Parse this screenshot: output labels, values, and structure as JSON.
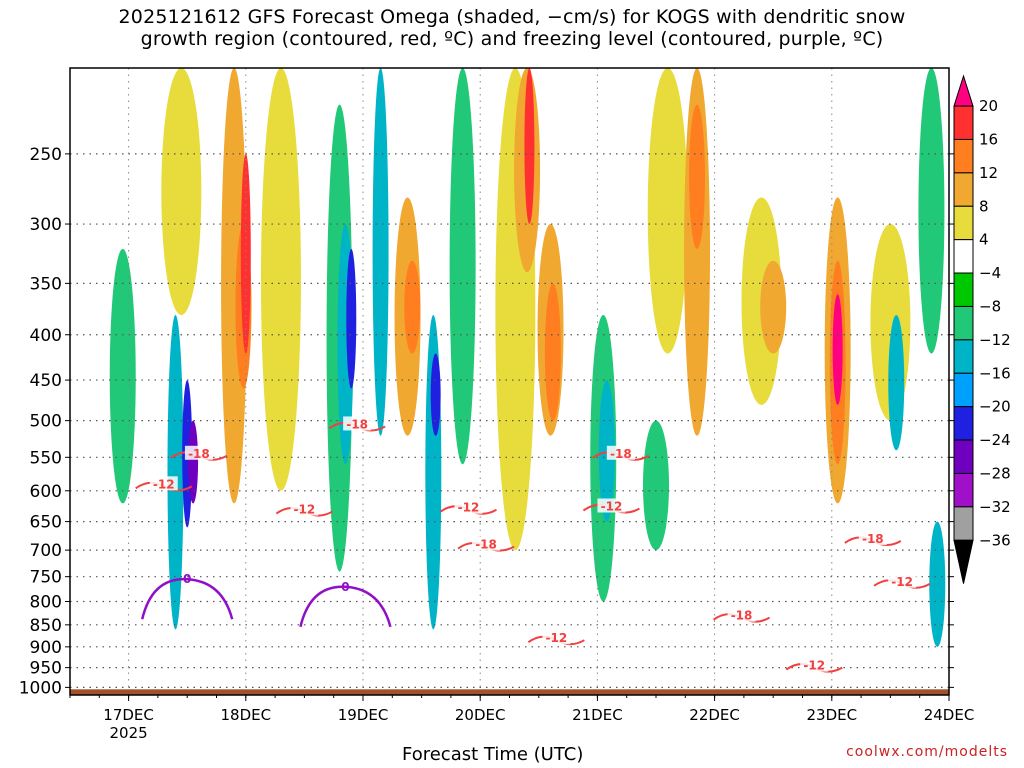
{
  "title": {
    "line1": "2025121612 GFS Forecast Omega (shaded, −cm/s) for KOGS with dendritic snow",
    "line2": "growth region (contoured, red, ºC) and freezing level (contoured, purple, ºC)"
  },
  "credit": "coolwx.com/modelts",
  "chart_data": {
    "type": "heatmap",
    "title": "2025121612 GFS Forecast Omega (shaded, −cm/s) for KOGS with dendritic snow growth region (contoured, red, ºC) and freezing level (contoured, purple, ºC)",
    "xlabel": "Forecast Time (UTC)",
    "ylabel": "",
    "x_range_days": [
      16.5,
      24.0
    ],
    "x_ticks": [
      {
        "day": 17,
        "label": "17DEC",
        "sublabel": "2025"
      },
      {
        "day": 18,
        "label": "18DEC",
        "sublabel": ""
      },
      {
        "day": 19,
        "label": "19DEC",
        "sublabel": ""
      },
      {
        "day": 20,
        "label": "20DEC",
        "sublabel": ""
      },
      {
        "day": 21,
        "label": "21DEC",
        "sublabel": ""
      },
      {
        "day": 22,
        "label": "22DEC",
        "sublabel": ""
      },
      {
        "day": 23,
        "label": "23DEC",
        "sublabel": ""
      },
      {
        "day": 24,
        "label": "24DEC",
        "sublabel": ""
      }
    ],
    "y_range_hpa": [
      200,
      1020
    ],
    "y_ticks": [
      250,
      300,
      350,
      400,
      450,
      500,
      550,
      600,
      650,
      700,
      750,
      800,
      850,
      900,
      950,
      1000
    ],
    "colorbar": {
      "labels": [
        "20",
        "16",
        "12",
        "8",
        "4",
        "−4",
        "−8",
        "−12",
        "−16",
        "−20",
        "−24",
        "−28",
        "−32",
        "−36"
      ],
      "colors": [
        "#ff0080",
        "#ff3030",
        "#ff7f20",
        "#f0a830",
        "#e8dc3c",
        "#ffffff",
        "#00c800",
        "#20c878",
        "#00b4c8",
        "#00a0ff",
        "#2020e0",
        "#7000c0",
        "#a010c8",
        "#a0a0a0",
        "#000000"
      ]
    },
    "omega_cells": [
      {
        "d": 16.95,
        "p0": 320,
        "p1": 620,
        "v": -8
      },
      {
        "d": 17.4,
        "p0": 380,
        "p1": 860,
        "v": -12
      },
      {
        "d": 17.5,
        "p0": 450,
        "p1": 660,
        "v": -20
      },
      {
        "d": 17.55,
        "p0": 500,
        "p1": 620,
        "v": -24
      },
      {
        "d": 17.45,
        "p0": 200,
        "p1": 380,
        "v": 4
      },
      {
        "d": 17.9,
        "p0": 200,
        "p1": 620,
        "v": 8
      },
      {
        "d": 17.98,
        "p0": 300,
        "p1": 460,
        "v": 12
      },
      {
        "d": 18.0,
        "p0": 250,
        "p1": 420,
        "v": 16
      },
      {
        "d": 18.3,
        "p0": 200,
        "p1": 600,
        "v": 4
      },
      {
        "d": 18.8,
        "p0": 220,
        "p1": 740,
        "v": -8
      },
      {
        "d": 18.85,
        "p0": 300,
        "p1": 560,
        "v": -12
      },
      {
        "d": 18.9,
        "p0": 320,
        "p1": 460,
        "v": -20
      },
      {
        "d": 19.15,
        "p0": 200,
        "p1": 520,
        "v": -12
      },
      {
        "d": 19.38,
        "p0": 280,
        "p1": 520,
        "v": 8
      },
      {
        "d": 19.42,
        "p0": 330,
        "p1": 420,
        "v": 12
      },
      {
        "d": 19.6,
        "p0": 380,
        "p1": 860,
        "v": -12
      },
      {
        "d": 19.62,
        "p0": 420,
        "p1": 520,
        "v": -20
      },
      {
        "d": 19.85,
        "p0": 200,
        "p1": 560,
        "v": -8
      },
      {
        "d": 20.3,
        "p0": 200,
        "p1": 700,
        "v": 4
      },
      {
        "d": 20.4,
        "p0": 200,
        "p1": 340,
        "v": 8
      },
      {
        "d": 20.42,
        "p0": 200,
        "p1": 300,
        "v": 16
      },
      {
        "d": 20.6,
        "p0": 300,
        "p1": 520,
        "v": 8
      },
      {
        "d": 20.62,
        "p0": 350,
        "p1": 500,
        "v": 12
      },
      {
        "d": 21.05,
        "p0": 380,
        "p1": 800,
        "v": -8
      },
      {
        "d": 21.08,
        "p0": 450,
        "p1": 650,
        "v": -12
      },
      {
        "d": 21.5,
        "p0": 500,
        "p1": 700,
        "v": -8
      },
      {
        "d": 21.6,
        "p0": 200,
        "p1": 420,
        "v": 4
      },
      {
        "d": 21.85,
        "p0": 200,
        "p1": 520,
        "v": 8
      },
      {
        "d": 21.85,
        "p0": 220,
        "p1": 320,
        "v": 12
      },
      {
        "d": 22.4,
        "p0": 280,
        "p1": 480,
        "v": 4
      },
      {
        "d": 22.5,
        "p0": 330,
        "p1": 420,
        "v": 8
      },
      {
        "d": 23.05,
        "p0": 280,
        "p1": 620,
        "v": 8
      },
      {
        "d": 23.05,
        "p0": 330,
        "p1": 560,
        "v": 12
      },
      {
        "d": 23.05,
        "p0": 360,
        "p1": 480,
        "v": 20
      },
      {
        "d": 23.5,
        "p0": 300,
        "p1": 500,
        "v": 4
      },
      {
        "d": 23.55,
        "p0": 380,
        "p1": 540,
        "v": -12
      },
      {
        "d": 23.85,
        "p0": 200,
        "p1": 420,
        "v": -8
      },
      {
        "d": 23.9,
        "p0": 650,
        "p1": 900,
        "v": -12
      }
    ],
    "dgz_contours": [
      {
        "label": "-12",
        "d": 17.3,
        "p": 590
      },
      {
        "label": "-18",
        "d": 17.6,
        "p": 545
      },
      {
        "label": "-18",
        "d": 18.95,
        "p": 505
      },
      {
        "label": "-12",
        "d": 18.5,
        "p": 630
      },
      {
        "label": "-12",
        "d": 19.9,
        "p": 627
      },
      {
        "label": "-18",
        "d": 20.05,
        "p": 690
      },
      {
        "label": "-18",
        "d": 21.2,
        "p": 545
      },
      {
        "label": "-12",
        "d": 21.12,
        "p": 625
      },
      {
        "label": "-12",
        "d": 20.65,
        "p": 880
      },
      {
        "label": "-18",
        "d": 22.23,
        "p": 830
      },
      {
        "label": "-12",
        "d": 22.85,
        "p": 945
      },
      {
        "label": "-18",
        "d": 23.35,
        "p": 680
      },
      {
        "label": "-12",
        "d": 23.6,
        "p": 760
      }
    ],
    "freezing_level": [
      {
        "label": "0",
        "d": 17.5,
        "p": 755
      },
      {
        "label": "0",
        "d": 18.85,
        "p": 770
      }
    ],
    "terrain_hpa": 1005
  }
}
